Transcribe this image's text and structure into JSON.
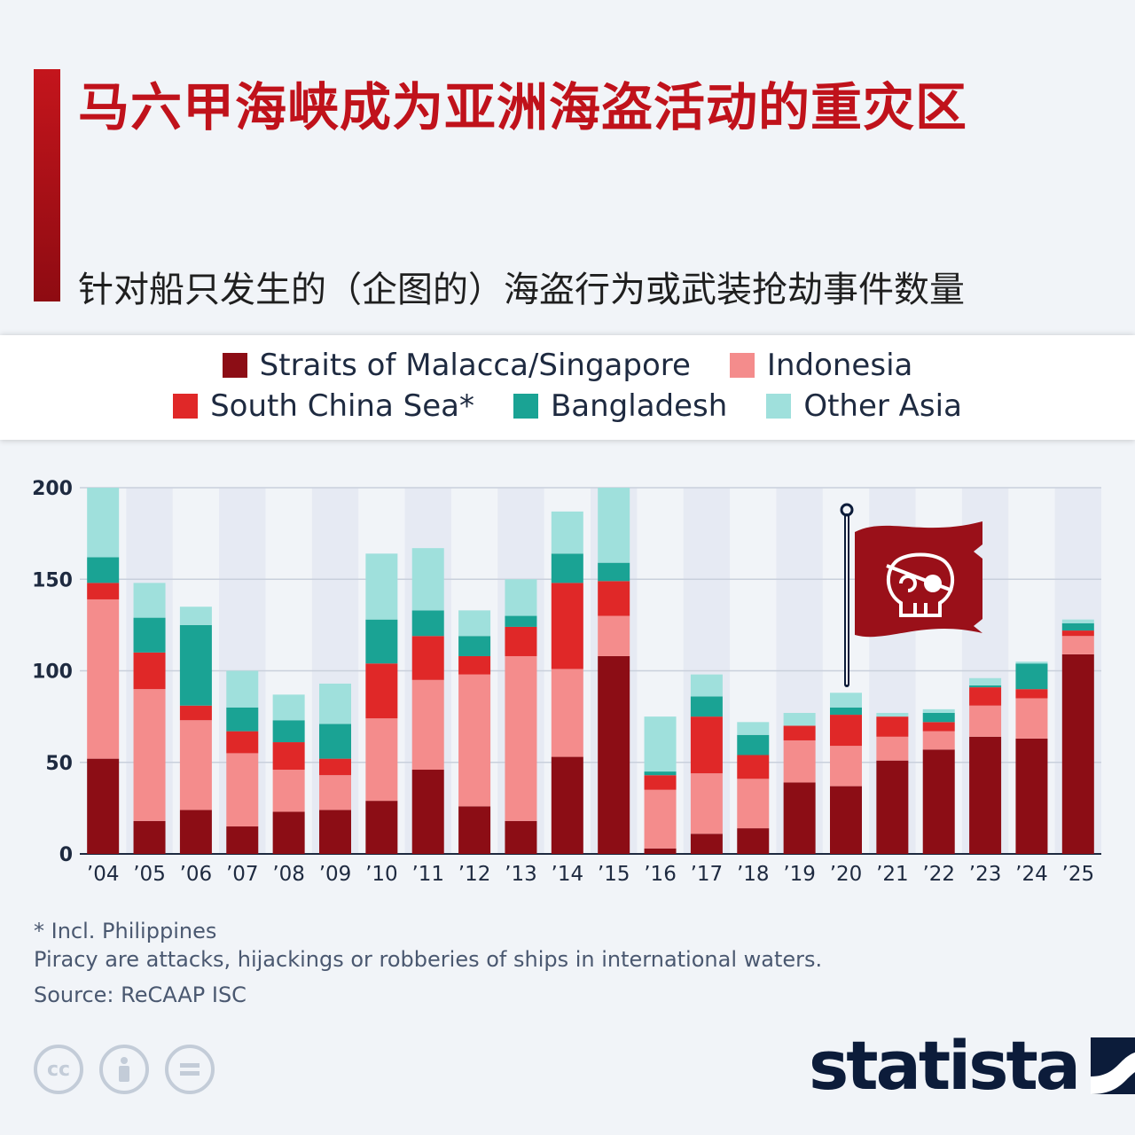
{
  "header": {
    "title": "马六甲海峡成为亚洲海盗活动的重灾区",
    "subtitle": "针对船只发生的（企图的）海盗行为或武装抢劫事件数量"
  },
  "legend": [
    {
      "label": "Straits of Malacca/Singapore",
      "color": "#8c0d15"
    },
    {
      "label": "Indonesia",
      "color": "#f48c8c"
    },
    {
      "label": "South China Sea*",
      "color": "#e02828"
    },
    {
      "label": "Bangladesh",
      "color": "#1aa394"
    },
    {
      "label": "Other Asia",
      "color": "#9fe0dc"
    }
  ],
  "chart_data": {
    "type": "bar",
    "stacked": true,
    "categories": [
      "’04",
      "’05",
      "’06",
      "’07",
      "’08",
      "’09",
      "’10",
      "’11",
      "’12",
      "’13",
      "’14",
      "’15",
      "’16",
      "’17",
      "’18",
      "’19",
      "’20",
      "’21",
      "’22",
      "’23",
      "’24",
      "’25"
    ],
    "series": [
      {
        "name": "Straits of Malacca/Singapore",
        "color": "#8c0d15",
        "values": [
          52,
          18,
          24,
          15,
          23,
          24,
          29,
          46,
          26,
          18,
          53,
          108,
          3,
          11,
          14,
          39,
          37,
          51,
          57,
          64,
          63,
          109
        ]
      },
      {
        "name": "Indonesia",
        "color": "#f48c8c",
        "values": [
          87,
          72,
          49,
          40,
          23,
          19,
          45,
          49,
          72,
          90,
          48,
          22,
          32,
          33,
          27,
          23,
          22,
          13,
          10,
          17,
          22,
          10
        ]
      },
      {
        "name": "South China Sea*",
        "color": "#e02828",
        "values": [
          9,
          20,
          8,
          12,
          15,
          9,
          30,
          24,
          10,
          16,
          47,
          19,
          8,
          31,
          13,
          8,
          17,
          11,
          5,
          10,
          5,
          3
        ]
      },
      {
        "name": "Bangladesh",
        "color": "#1aa394",
        "values": [
          14,
          19,
          44,
          13,
          12,
          19,
          24,
          14,
          11,
          6,
          16,
          10,
          2,
          11,
          11,
          0,
          4,
          0,
          5,
          1,
          14,
          4
        ]
      },
      {
        "name": "Other Asia",
        "color": "#9fe0dc",
        "values": [
          38,
          19,
          10,
          20,
          14,
          22,
          36,
          34,
          14,
          20,
          23,
          41,
          30,
          12,
          7,
          7,
          8,
          2,
          2,
          4,
          1,
          2
        ]
      }
    ],
    "yticks": [
      0,
      50,
      100,
      150,
      200
    ],
    "ylim": [
      0,
      200
    ],
    "grid": true,
    "legend_position": "top"
  },
  "footer": {
    "note": "* Incl. Philippines",
    "definition": "Piracy are attacks, hijackings or robberies of ships in international waters.",
    "source": "Source: ReCAAP ISC",
    "brand": "statista"
  },
  "icons": {
    "pirate_flag": "pirate-flag-icon",
    "cc": "creative-commons-icon",
    "by": "attribution-icon",
    "nd": "no-derivatives-icon",
    "brand": "statista-logo-icon"
  }
}
